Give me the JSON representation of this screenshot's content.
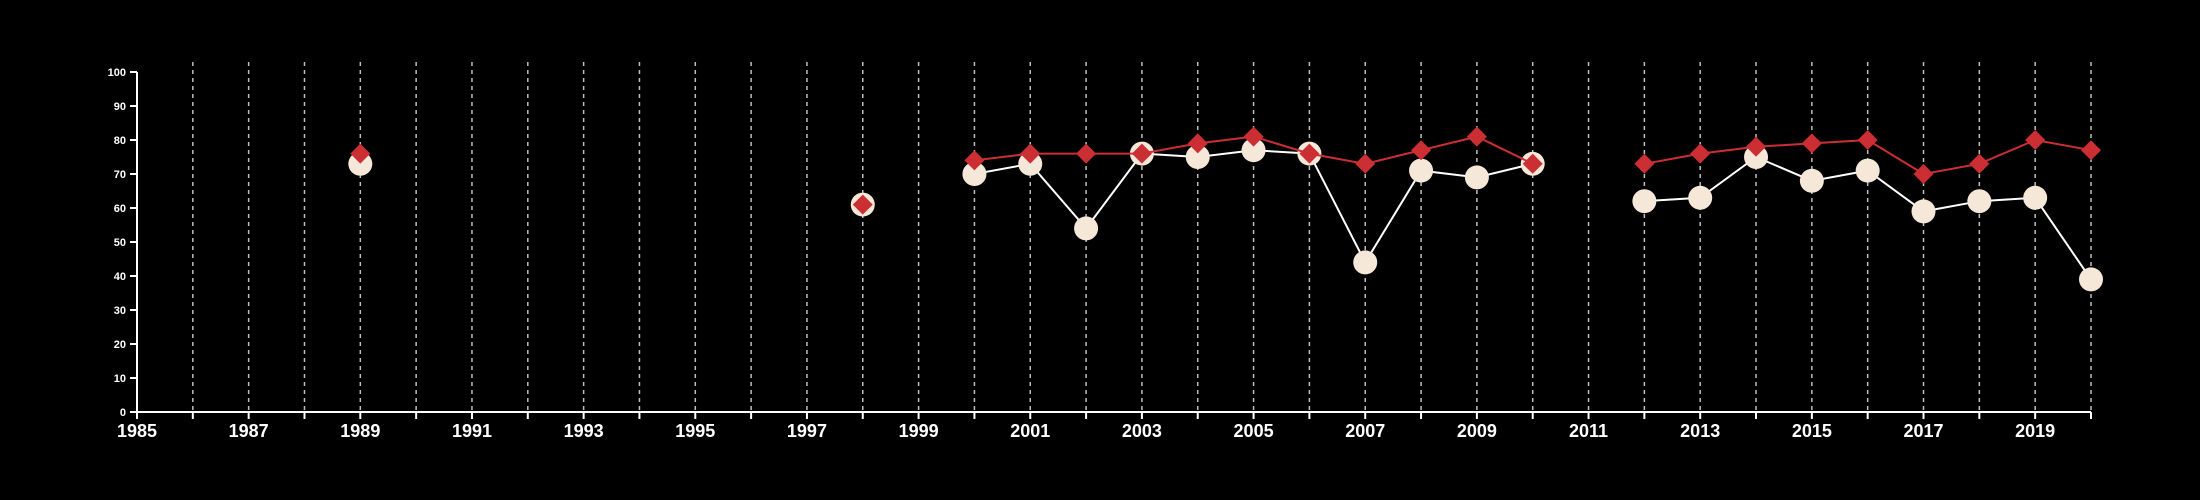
{
  "colors": {
    "background": "#000000",
    "axis": "#ffffff",
    "grid": "#bdbdbd",
    "series_red": "#cc2f33",
    "series_cream": "#f6e8d8",
    "series_cream_line": "#ffffff"
  },
  "chart_data": {
    "type": "line",
    "title": "",
    "xlabel": "",
    "ylabel": "",
    "xlim": [
      1985,
      2020
    ],
    "ylim": [
      0,
      100
    ],
    "x_ticks": [
      1985,
      1987,
      1989,
      1991,
      1993,
      1995,
      1997,
      1999,
      2001,
      2003,
      2005,
      2007,
      2009,
      2011,
      2013,
      2015,
      2017,
      2019
    ],
    "y_ticks": [
      0,
      10,
      20,
      30,
      40,
      50,
      60,
      70,
      80,
      90,
      100
    ],
    "grid": "vertical dashed lines at every year",
    "legend": "none",
    "series": [
      {
        "marker": "circle",
        "color": "#f6e8d8",
        "points": [
          [
            1989,
            73
          ],
          [
            1998,
            61
          ],
          [
            2000,
            70
          ],
          [
            2001,
            73
          ],
          [
            2002,
            54
          ],
          [
            2003,
            76
          ],
          [
            2004,
            75
          ],
          [
            2005,
            77
          ],
          [
            2006,
            76
          ],
          [
            2007,
            44
          ],
          [
            2008,
            71
          ],
          [
            2009,
            69
          ],
          [
            2010,
            73
          ],
          [
            2012,
            62
          ],
          [
            2013,
            63
          ],
          [
            2014,
            75
          ],
          [
            2015,
            68
          ],
          [
            2016,
            71
          ],
          [
            2017,
            59
          ],
          [
            2018,
            62
          ],
          [
            2019,
            63
          ],
          [
            2020,
            39
          ]
        ]
      },
      {
        "marker": "diamond",
        "color": "#cc2f33",
        "points": [
          [
            1989,
            76
          ],
          [
            1998,
            61
          ],
          [
            2000,
            74
          ],
          [
            2001,
            76
          ],
          [
            2002,
            76
          ],
          [
            2003,
            76
          ],
          [
            2004,
            79
          ],
          [
            2005,
            81
          ],
          [
            2006,
            76
          ],
          [
            2007,
            73
          ],
          [
            2008,
            77
          ],
          [
            2009,
            81
          ],
          [
            2010,
            73
          ],
          [
            2012,
            73
          ],
          [
            2013,
            76
          ],
          [
            2014,
            78
          ],
          [
            2015,
            79
          ],
          [
            2016,
            80
          ],
          [
            2017,
            70
          ],
          [
            2018,
            73
          ],
          [
            2019,
            80
          ],
          [
            2020,
            77
          ]
        ]
      }
    ]
  }
}
